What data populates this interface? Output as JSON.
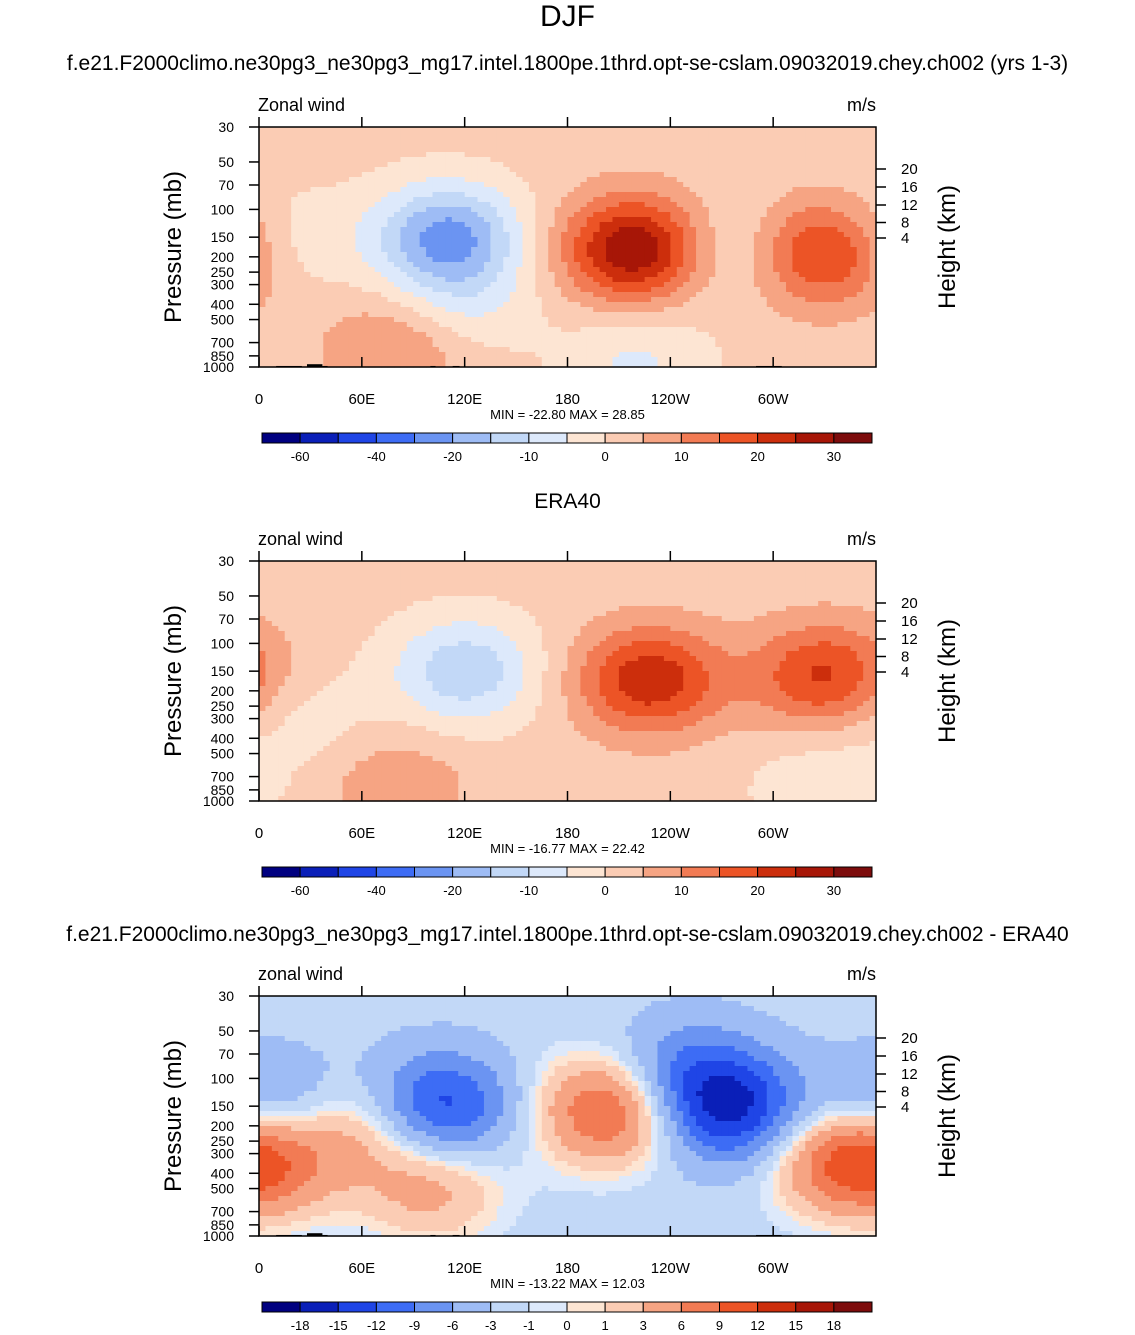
{
  "page_title": "DJF",
  "palettes": {
    "main": [
      "#000080",
      "#0a1fb8",
      "#1f45e6",
      "#3d6cf5",
      "#6b94f2",
      "#9ebcf5",
      "#c2d8f7",
      "#dde9fb",
      "#fde5d3",
      "#fbccb4",
      "#f6a483",
      "#f27b54",
      "#ec5426",
      "#cc2e0c",
      "#a71607",
      "#7d0c0c"
    ],
    "diff": [
      "#000080",
      "#0a1fb8",
      "#1f45e6",
      "#3d6cf5",
      "#6b94f2",
      "#9ebcf5",
      "#c2d8f7",
      "#dde9fb",
      "#fde5d3",
      "#fbccb4",
      "#f6a483",
      "#f27b54",
      "#ec5426",
      "#cc2e0c",
      "#a71607",
      "#7d0c0c"
    ]
  },
  "chart_data": [
    {
      "type": "heatmap",
      "panel_title": "f.e21.F2000climo.ne30pg3_ne30pg3_mg17.intel.1800pe.1thrd.opt-se-cslam.09032019.chey.ch002 (yrs 1-3)",
      "variable_label": "Zonal wind",
      "units": "m/s",
      "ylabel": "Pressure (mb)",
      "y2label": "Height (km)",
      "xticks": [
        "0",
        "60E",
        "120E",
        "180",
        "120W",
        "60W"
      ],
      "yticks": [
        "30",
        "50",
        "70",
        "100",
        "150",
        "200",
        "250",
        "300",
        "400",
        "500",
        "700",
        "850",
        "1000"
      ],
      "y2ticks": [
        "20",
        "16",
        "12",
        "8",
        "4"
      ],
      "min_label": "MIN = -22.80",
      "max_label": "MAX =  28.85",
      "palette": "main",
      "contour_levels": [
        -70,
        -60,
        -50,
        -40,
        -30,
        -20,
        -15,
        -10,
        -5,
        0,
        5,
        10,
        15,
        20,
        25,
        30
      ],
      "colorbar_labels": [
        "-60",
        "-40",
        "-20",
        "-10",
        "0",
        "10",
        "20",
        "30"
      ],
      "background_level": 2,
      "features": [
        {
          "lon": 15,
          "p": 160,
          "amp": -7
        },
        {
          "lon": 110,
          "p": 150,
          "amp": -24
        },
        {
          "lon": 220,
          "p": 180,
          "amp": 29
        },
        {
          "lon": 330,
          "p": 190,
          "amp": 21
        },
        {
          "lon": 272,
          "p": 180,
          "amp": -8
        },
        {
          "lon": 80,
          "p": 750,
          "amp": 9
        },
        {
          "lon": 220,
          "p": 900,
          "amp": -8
        },
        {
          "lon": 120,
          "p": 400,
          "amp": -7
        }
      ]
    },
    {
      "type": "heatmap",
      "panel_title": "ERA40",
      "variable_label": "zonal wind",
      "units": "m/s",
      "ylabel": "Pressure (mb)",
      "y2label": "Height (km)",
      "xticks": [
        "0",
        "60E",
        "120E",
        "180",
        "120W",
        "60W"
      ],
      "yticks": [
        "30",
        "50",
        "70",
        "100",
        "150",
        "200",
        "250",
        "300",
        "400",
        "500",
        "700",
        "850",
        "1000"
      ],
      "y2ticks": [
        "20",
        "16",
        "12",
        "8",
        "4"
      ],
      "min_label": "MIN = -16.77",
      "max_label": "MAX =  22.42",
      "palette": "main",
      "contour_levels": [
        -70,
        -60,
        -50,
        -40,
        -30,
        -20,
        -15,
        -10,
        -5,
        0,
        5,
        10,
        15,
        20,
        25,
        30
      ],
      "colorbar_labels": [
        "-60",
        "-40",
        "-20",
        "-10",
        "0",
        "10",
        "20",
        "30"
      ],
      "background_level": 2,
      "features": [
        {
          "lon": 25,
          "p": 300,
          "amp": -5
        },
        {
          "lon": 120,
          "p": 150,
          "amp": -16
        },
        {
          "lon": 228,
          "p": 170,
          "amp": 22
        },
        {
          "lon": 330,
          "p": 160,
          "amp": 19
        },
        {
          "lon": 80,
          "p": 800,
          "amp": 7
        },
        {
          "lon": 330,
          "p": 800,
          "amp": -6
        }
      ]
    },
    {
      "type": "heatmap",
      "panel_title": "f.e21.F2000climo.ne30pg3_ne30pg3_mg17.intel.1800pe.1thrd.opt-se-cslam.09032019.chey.ch002 - ERA40",
      "variable_label": "zonal wind",
      "units": "m/s",
      "ylabel": "Pressure (mb)",
      "y2label": "Height (km)",
      "xticks": [
        "0",
        "60E",
        "120E",
        "180",
        "120W",
        "60W"
      ],
      "yticks": [
        "30",
        "50",
        "70",
        "100",
        "150",
        "200",
        "250",
        "300",
        "400",
        "500",
        "700",
        "850",
        "1000"
      ],
      "y2ticks": [
        "20",
        "16",
        "12",
        "8",
        "4"
      ],
      "min_label": "MIN = -13.22",
      "max_label": "MAX =  12.03",
      "palette": "diff",
      "contour_levels": [
        -21,
        -18,
        -15,
        -12,
        -9,
        -6,
        -3,
        -1,
        0,
        1,
        3,
        6,
        9,
        12,
        15,
        18
      ],
      "colorbar_labels": [
        "-18",
        "-15",
        "-12",
        "-9",
        "-6",
        "-3",
        "-1",
        "0",
        "1",
        "3",
        "6",
        "9",
        "12",
        "15",
        "18"
      ],
      "background_level": -2,
      "features": [
        {
          "lon": 105,
          "p": 150,
          "amp": -12
        },
        {
          "lon": 205,
          "p": 160,
          "amp": 12
        },
        {
          "lon": 275,
          "p": 160,
          "amp": -13
        },
        {
          "lon": 250,
          "p": 90,
          "amp": -7
        },
        {
          "lon": 8,
          "p": 150,
          "amp": -6
        },
        {
          "lon": 5,
          "p": 350,
          "amp": 8
        },
        {
          "lon": 60,
          "p": 200,
          "amp": 6
        },
        {
          "lon": 100,
          "p": 500,
          "amp": 6
        },
        {
          "lon": 340,
          "p": 320,
          "amp": 9
        }
      ]
    }
  ]
}
